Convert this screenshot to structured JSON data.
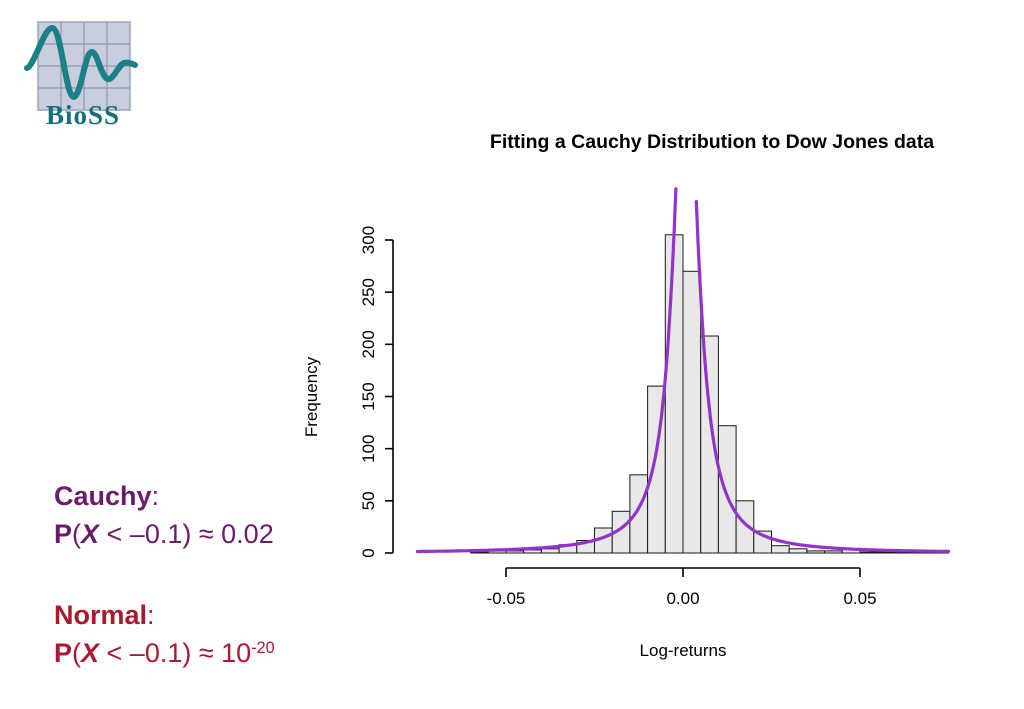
{
  "page": {
    "background": "#ffffff"
  },
  "logo": {
    "text": "BioSS",
    "text_color": "#14707a",
    "wave_color": "#1b8087",
    "grid_fill": "#c9cedd",
    "grid_line": "#98a0b2"
  },
  "chart_data": {
    "type": "bar",
    "subtype": "histogram-with-fitted-curve",
    "title": "Fitting a Cauchy Distribution to Dow Jones data",
    "xlabel": "Log-returns",
    "ylabel": "Frequency",
    "xlim": [
      -0.075,
      0.075
    ],
    "ylim": [
      0,
      350
    ],
    "grid": "off",
    "legend": "none",
    "x_ticks": [
      -0.05,
      0,
      0.05
    ],
    "x_tick_labels": [
      "-0.05",
      "0.00",
      "0.05"
    ],
    "y_ticks": [
      0,
      50,
      100,
      150,
      200,
      250,
      300
    ],
    "bin_start": -0.06,
    "bin_width": 0.005,
    "counts": [
      1,
      2,
      2,
      3,
      4,
      8,
      12,
      24,
      40,
      75,
      160,
      305,
      270,
      208,
      122,
      50,
      21,
      7,
      4,
      2,
      2,
      4,
      1,
      1,
      1,
      1,
      1
    ],
    "bar_fill": "#e8e8e8",
    "bar_stroke": "#1a1a1a",
    "curve": {
      "name": "fitted Cauchy density",
      "color": "#9333cc",
      "amplitude": 520,
      "gamma": 0.004,
      "x0": 0.0008,
      "x_range": [
        -0.075,
        0.075
      ]
    }
  },
  "annotations": [
    {
      "id": "cauchy",
      "color": "#6b1b6b",
      "heading": [
        {
          "t": "Cauchy",
          "b": true
        },
        {
          "t": ":"
        }
      ],
      "formula": [
        {
          "t": "P",
          "b": true
        },
        {
          "t": "("
        },
        {
          "t": "X",
          "b": true,
          "i": true
        },
        {
          "t": " < –0.1) ≈ 0.02"
        }
      ]
    },
    {
      "id": "normal",
      "color": "#a81a30",
      "heading": [
        {
          "t": "Normal",
          "b": true
        },
        {
          "t": ":"
        }
      ],
      "formula": [
        {
          "t": "P",
          "b": true
        },
        {
          "t": "("
        },
        {
          "t": "X",
          "b": true,
          "i": true
        },
        {
          "t": " < –0.1) ≈ 10"
        },
        {
          "t": "-20",
          "sup": true
        }
      ]
    }
  ]
}
